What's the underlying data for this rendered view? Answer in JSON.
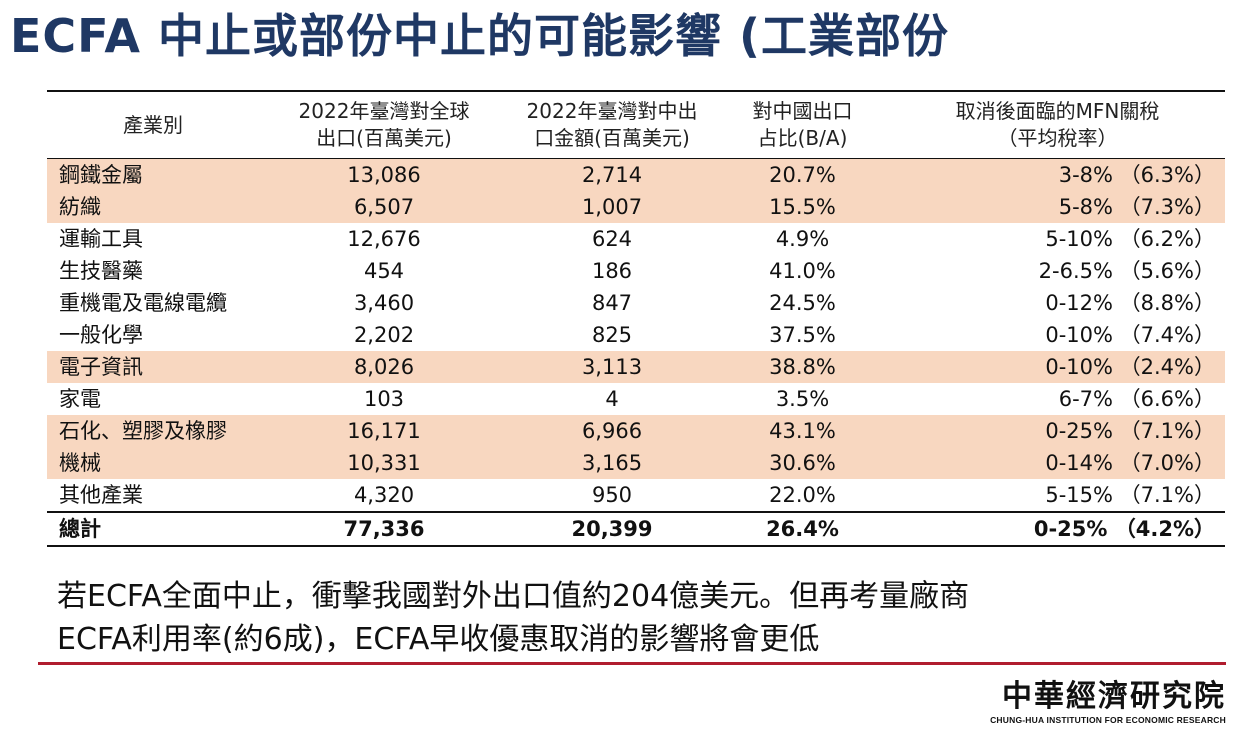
{
  "title": "ECFA 中止或部份中止的可能影響 (工業部份",
  "table": {
    "headers": [
      [
        "產業別"
      ],
      [
        "2022年臺灣對全球",
        "出口(百萬美元)"
      ],
      [
        "2022年臺灣對中出",
        "口金額(百萬美元)"
      ],
      [
        "對中國出口",
        "占比(B/A)"
      ],
      [
        "取消後面臨的MFN關稅",
        "（平均稅率）"
      ]
    ],
    "rows": [
      {
        "name": "鋼鐵金屬",
        "global": "13,086",
        "china": "2,714",
        "share": "20.7%",
        "mfn": "3-8% （6.3%）",
        "highlight": true
      },
      {
        "name": "紡織",
        "global": "6,507",
        "china": "1,007",
        "share": "15.5%",
        "mfn": "5-8% （7.3%）",
        "highlight": true
      },
      {
        "name": "運輸工具",
        "global": "12,676",
        "china": "624",
        "share": "4.9%",
        "mfn": "5-10% （6.2%）",
        "highlight": false
      },
      {
        "name": "生技醫藥",
        "global": "454",
        "china": "186",
        "share": "41.0%",
        "mfn": "2-6.5% （5.6%）",
        "highlight": false
      },
      {
        "name": "重機電及電線電纜",
        "global": "3,460",
        "china": "847",
        "share": "24.5%",
        "mfn": "0-12% （8.8%）",
        "highlight": false
      },
      {
        "name": "一般化學",
        "global": "2,202",
        "china": "825",
        "share": "37.5%",
        "mfn": "0-10% （7.4%）",
        "highlight": false
      },
      {
        "name": "電子資訊",
        "global": "8,026",
        "china": "3,113",
        "share": "38.8%",
        "mfn": "0-10% （2.4%）",
        "highlight": true
      },
      {
        "name": "家電",
        "global": "103",
        "china": "4",
        "share": "3.5%",
        "mfn": "6-7% （6.6%）",
        "highlight": false
      },
      {
        "name": "石化、塑膠及橡膠",
        "global": "16,171",
        "china": "6,966",
        "share": "43.1%",
        "mfn": "0-25% （7.1%）",
        "highlight": true
      },
      {
        "name": "機械",
        "global": "10,331",
        "china": "3,165",
        "share": "30.6%",
        "mfn": "0-14% （7.0%）",
        "highlight": true
      },
      {
        "name": "其他產業",
        "global": "4,320",
        "china": "950",
        "share": "22.0%",
        "mfn": "5-15% （7.1%）",
        "highlight": false
      }
    ],
    "total": {
      "name": "總計",
      "global": "77,336",
      "china": "20,399",
      "share": "26.4%",
      "mfn": "0-25% （4.2%）"
    },
    "highlight_color": "#f8d7c0"
  },
  "note": {
    "line1": "若ECFA全面中止，衝擊我國對外出口值約204億美元。但再考量廠商",
    "line2": "ECFA利用率(約6成)，ECFA早收優惠取消的影響將會更低"
  },
  "logo": {
    "cn": "中華經濟研究院",
    "en": "CHUNG-HUA INSTITUTION FOR ECONOMIC RESEARCH"
  },
  "colors": {
    "title": "#1f3864",
    "rule": "#b01c2e"
  }
}
